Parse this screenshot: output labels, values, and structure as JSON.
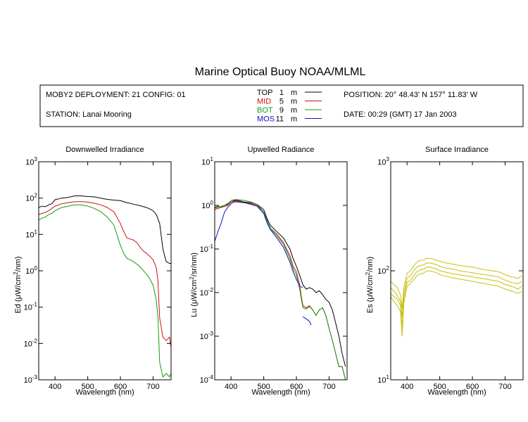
{
  "figure": {
    "title": "Marine Optical Buoy NOAA/MLML",
    "info": {
      "deployment": "MOBY2 DEPLOYMENT: 21 CONFIG: 01",
      "station": "STATION: Lanai Mooring",
      "position": "POSITION: 20° 48.43' N   157° 11.83' W",
      "date": "DATE: 00:29 (GMT) 17 Jan 2003"
    },
    "legend": [
      {
        "code": "TOP",
        "depth": "1",
        "unit": "m",
        "color": "#000000",
        "series_index": 0
      },
      {
        "code": "MID",
        "depth": "5",
        "unit": "m",
        "color": "#d01010",
        "series_index": 1
      },
      {
        "code": "BOT",
        "depth": "9",
        "unit": "m",
        "color": "#10a010",
        "series_index": 2
      },
      {
        "code": "MOS",
        "depth": "11",
        "unit": "m",
        "color": "#1010c0",
        "series_index": 3
      }
    ]
  },
  "chart_data": [
    {
      "type": "line",
      "title": "Downwelled Irradiance",
      "xlabel": "Wavelength (nm)",
      "ylabel": "Ed  (μW/cm²/nm)",
      "ylabel_parts": [
        "Ed  (",
        "μ",
        "W/cm",
        "2",
        "/nm)"
      ],
      "xlim": [
        350,
        755
      ],
      "ylim": [
        0.001,
        1000
      ],
      "yscale": "log",
      "xticks": [
        400,
        500,
        600,
        700
      ],
      "xtick_labels": [
        "400",
        "500",
        "600",
        "700"
      ],
      "ytick_exponents": [
        -3,
        -2,
        -1,
        0,
        1,
        2,
        3
      ],
      "ytick_labels": [
        "10-3",
        "10-2",
        "10-1",
        "100",
        "101",
        "102",
        "103"
      ],
      "series": [
        {
          "name": "TOP",
          "color": "#000000",
          "x": [
            350,
            360,
            370,
            380,
            390,
            400,
            420,
            440,
            460,
            480,
            500,
            520,
            540,
            560,
            580,
            600,
            620,
            640,
            660,
            680,
            690,
            700,
            710,
            720,
            730,
            740,
            750,
            755
          ],
          "y": [
            55,
            60,
            58,
            65,
            70,
            90,
            100,
            105,
            115,
            115,
            110,
            108,
            100,
            92,
            88,
            85,
            75,
            68,
            62,
            55,
            50,
            45,
            35,
            20,
            4,
            1.8,
            1.6,
            1.6
          ]
        },
        {
          "name": "MID",
          "color": "#d01010",
          "x": [
            350,
            360,
            370,
            380,
            390,
            400,
            420,
            440,
            460,
            480,
            500,
            520,
            540,
            560,
            580,
            600,
            610,
            620,
            640,
            650,
            660,
            670,
            680,
            690,
            700,
            710,
            715,
            720,
            730,
            740,
            750,
            755
          ],
          "y": [
            35,
            38,
            40,
            45,
            52,
            60,
            70,
            75,
            80,
            80,
            78,
            72,
            65,
            55,
            42,
            20,
            12,
            8,
            7,
            6,
            4.5,
            3.5,
            3,
            2.5,
            2,
            1.2,
            0.5,
            0.05,
            0.015,
            0.012,
            0.015,
            0.008
          ]
        },
        {
          "name": "BOT",
          "color": "#10a010",
          "x": [
            350,
            360,
            370,
            380,
            390,
            400,
            420,
            440,
            460,
            480,
            500,
            520,
            540,
            560,
            580,
            600,
            610,
            620,
            640,
            660,
            680,
            690,
            700,
            710,
            715,
            720,
            730,
            740,
            750,
            755
          ],
          "y": [
            25,
            28,
            30,
            35,
            38,
            45,
            55,
            60,
            65,
            65,
            60,
            52,
            42,
            30,
            18,
            5,
            3,
            2.2,
            1.8,
            1.3,
            0.8,
            0.6,
            0.4,
            0.15,
            0.05,
            0.003,
            0.0012,
            0.0015,
            0.0012,
            0.0015
          ]
        }
      ]
    },
    {
      "type": "line",
      "title": "Upwelled Radiance",
      "xlabel": "Wavelength (nm)",
      "ylabel": "Lu  (μW/cm²/sr/nm)",
      "ylabel_parts": [
        "Lu  (",
        "μ",
        "W/cm",
        "2",
        "/sr/nm)"
      ],
      "xlim": [
        350,
        755
      ],
      "ylim": [
        0.0001,
        10
      ],
      "yscale": "log",
      "xticks": [
        400,
        500,
        600,
        700
      ],
      "xtick_labels": [
        "400",
        "500",
        "600",
        "700"
      ],
      "ytick_exponents": [
        -4,
        -3,
        -2,
        -1,
        0,
        1
      ],
      "ytick_labels": [
        "10-4",
        "10-3",
        "10-2",
        "10-1",
        "100",
        "101"
      ],
      "series": [
        {
          "name": "TOP",
          "color": "#000000",
          "x": [
            350,
            360,
            370,
            380,
            390,
            400,
            410,
            420,
            440,
            460,
            480,
            500,
            510,
            520,
            540,
            560,
            580,
            590,
            600,
            610,
            620,
            630,
            640,
            650,
            660,
            670,
            680,
            690,
            700,
            710,
            720,
            730,
            740,
            750
          ],
          "y": [
            0.9,
            0.95,
            0.9,
            1,
            1.1,
            1.2,
            1.3,
            1.3,
            1.2,
            1.15,
            1.05,
            0.8,
            0.5,
            0.35,
            0.25,
            0.18,
            0.1,
            0.06,
            0.04,
            0.025,
            0.015,
            0.012,
            0.013,
            0.012,
            0.01,
            0.011,
            0.009,
            0.007,
            0.006,
            0.004,
            0.002,
            0.001,
            0.0004,
            0.0002
          ]
        },
        {
          "name": "MID",
          "color": "#d01010",
          "x": [
            350,
            360,
            370,
            380,
            390,
            400,
            410,
            420,
            440,
            460,
            480,
            500,
            510,
            520,
            540,
            560,
            580,
            590,
            600,
            610,
            615,
            620,
            630,
            640,
            650,
            660,
            670,
            680,
            690,
            700,
            710,
            720,
            730,
            740,
            750
          ],
          "y": [
            0.8,
            0.85,
            0.9,
            0.95,
            1,
            1.2,
            1.25,
            1.25,
            1.15,
            1.1,
            1,
            0.7,
            0.45,
            0.3,
            0.22,
            0.14,
            0.07,
            0.04,
            0.03,
            0.015,
            0.008,
            0.005,
            0.0045,
            0.005,
            0.004,
            0.003,
            0.004,
            0.0045,
            0.003,
            0.0015,
            0.0008,
            0.0004,
            0.0002,
            0.0002,
            0.0001
          ]
        },
        {
          "name": "BOT",
          "color": "#10a010",
          "x": [
            350,
            360,
            370,
            380,
            390,
            400,
            410,
            420,
            440,
            460,
            480,
            500,
            510,
            520,
            540,
            560,
            580,
            590,
            600,
            610,
            615,
            620,
            630,
            640,
            650,
            660,
            670,
            680,
            690,
            700,
            710,
            720,
            730,
            740,
            750
          ],
          "y": [
            0.85,
            0.9,
            0.95,
            1,
            1.05,
            1.3,
            1.35,
            1.35,
            1.3,
            1.2,
            1.05,
            0.7,
            0.45,
            0.3,
            0.2,
            0.13,
            0.06,
            0.035,
            0.025,
            0.012,
            0.007,
            0.0045,
            0.0042,
            0.0048,
            0.004,
            0.003,
            0.004,
            0.0045,
            0.003,
            0.0015,
            0.0008,
            0.0004,
            0.0002,
            0.0002,
            0.0001
          ]
        },
        {
          "name": "MOS",
          "color": "#1010c0",
          "x": [
            350,
            360,
            370,
            380,
            390,
            400,
            410,
            420,
            440,
            460,
            480,
            500,
            510,
            520,
            540,
            560,
            580,
            590,
            600,
            610,
            620
          ],
          "y": [
            0.15,
            0.25,
            0.4,
            0.7,
            0.9,
            1.1,
            1.2,
            1.2,
            1.15,
            1.05,
            0.95,
            0.65,
            0.4,
            0.28,
            0.18,
            0.11,
            0.05,
            0.03,
            0.02,
            0.014,
            0.013
          ]
        },
        {
          "name": "MOS",
          "color": "#1010c0",
          "x": [
            620,
            630,
            640,
            645
          ],
          "y": [
            0.0028,
            0.0025,
            0.0022,
            0.0018
          ]
        }
      ]
    },
    {
      "type": "line",
      "title": "Surface Irradiance",
      "xlabel": "Wavelength (nm)",
      "ylabel": "Es  (μW/cm²/nm)",
      "ylabel_parts": [
        "Es  (",
        "μ",
        "W/cm",
        "2",
        "/nm)"
      ],
      "xlim": [
        350,
        755
      ],
      "ylim": [
        10,
        1000
      ],
      "yscale": "log",
      "xticks": [
        400,
        500,
        600,
        700
      ],
      "xtick_labels": [
        "400",
        "500",
        "600",
        "700"
      ],
      "ytick_exponents": [
        1,
        2,
        3
      ],
      "ytick_labels": [
        "101",
        "102",
        "103"
      ],
      "series": [
        {
          "name": "",
          "color": "#c8c010",
          "x": [
            350,
            360,
            370,
            380,
            385,
            390,
            400,
            410,
            420,
            430,
            440,
            450,
            460,
            470,
            480,
            490,
            500,
            520,
            540,
            560,
            580,
            600,
            620,
            640,
            660,
            680,
            700,
            720,
            740,
            750
          ],
          "y": [
            80,
            75,
            70,
            60,
            45,
            70,
            95,
            100,
            110,
            120,
            125,
            125,
            130,
            130,
            128,
            125,
            122,
            118,
            115,
            112,
            110,
            108,
            105,
            102,
            100,
            98,
            92,
            88,
            85,
            90
          ]
        },
        {
          "name": "",
          "color": "#c8c010",
          "x": [
            350,
            360,
            370,
            380,
            385,
            390,
            400,
            410,
            420,
            430,
            440,
            450,
            460,
            470,
            480,
            490,
            500,
            520,
            540,
            560,
            580,
            600,
            620,
            640,
            660,
            680,
            700,
            720,
            740,
            750
          ],
          "y": [
            70,
            65,
            60,
            52,
            38,
            62,
            85,
            90,
            100,
            108,
            112,
            113,
            118,
            118,
            116,
            114,
            110,
            106,
            104,
            100,
            98,
            96,
            94,
            92,
            90,
            88,
            82,
            78,
            76,
            80
          ]
        },
        {
          "name": "",
          "color": "#c8c010",
          "x": [
            350,
            360,
            370,
            380,
            385,
            390,
            400,
            410,
            420,
            430,
            440,
            450,
            460,
            470,
            480,
            490,
            500,
            520,
            540,
            560,
            580,
            600,
            620,
            640,
            660,
            680,
            700,
            720,
            740,
            750
          ],
          "y": [
            62,
            58,
            55,
            48,
            30,
            56,
            78,
            82,
            90,
            98,
            102,
            103,
            108,
            108,
            106,
            104,
            100,
            97,
            94,
            92,
            90,
            88,
            86,
            84,
            82,
            80,
            75,
            72,
            68,
            72
          ]
        },
        {
          "name": "",
          "color": "#c8c010",
          "x": [
            350,
            360,
            370,
            380,
            385,
            390,
            400,
            410,
            420,
            430,
            440,
            450,
            460,
            470,
            480,
            490,
            500,
            520,
            540,
            560,
            580,
            600,
            620,
            640,
            660,
            680,
            700,
            720,
            740,
            750
          ],
          "y": [
            58,
            52,
            48,
            42,
            25,
            50,
            72,
            76,
            83,
            90,
            94,
            95,
            100,
            100,
            98,
            96,
            92,
            89,
            86,
            84,
            82,
            80,
            78,
            76,
            74,
            72,
            68,
            65,
            62,
            65
          ]
        }
      ]
    }
  ]
}
